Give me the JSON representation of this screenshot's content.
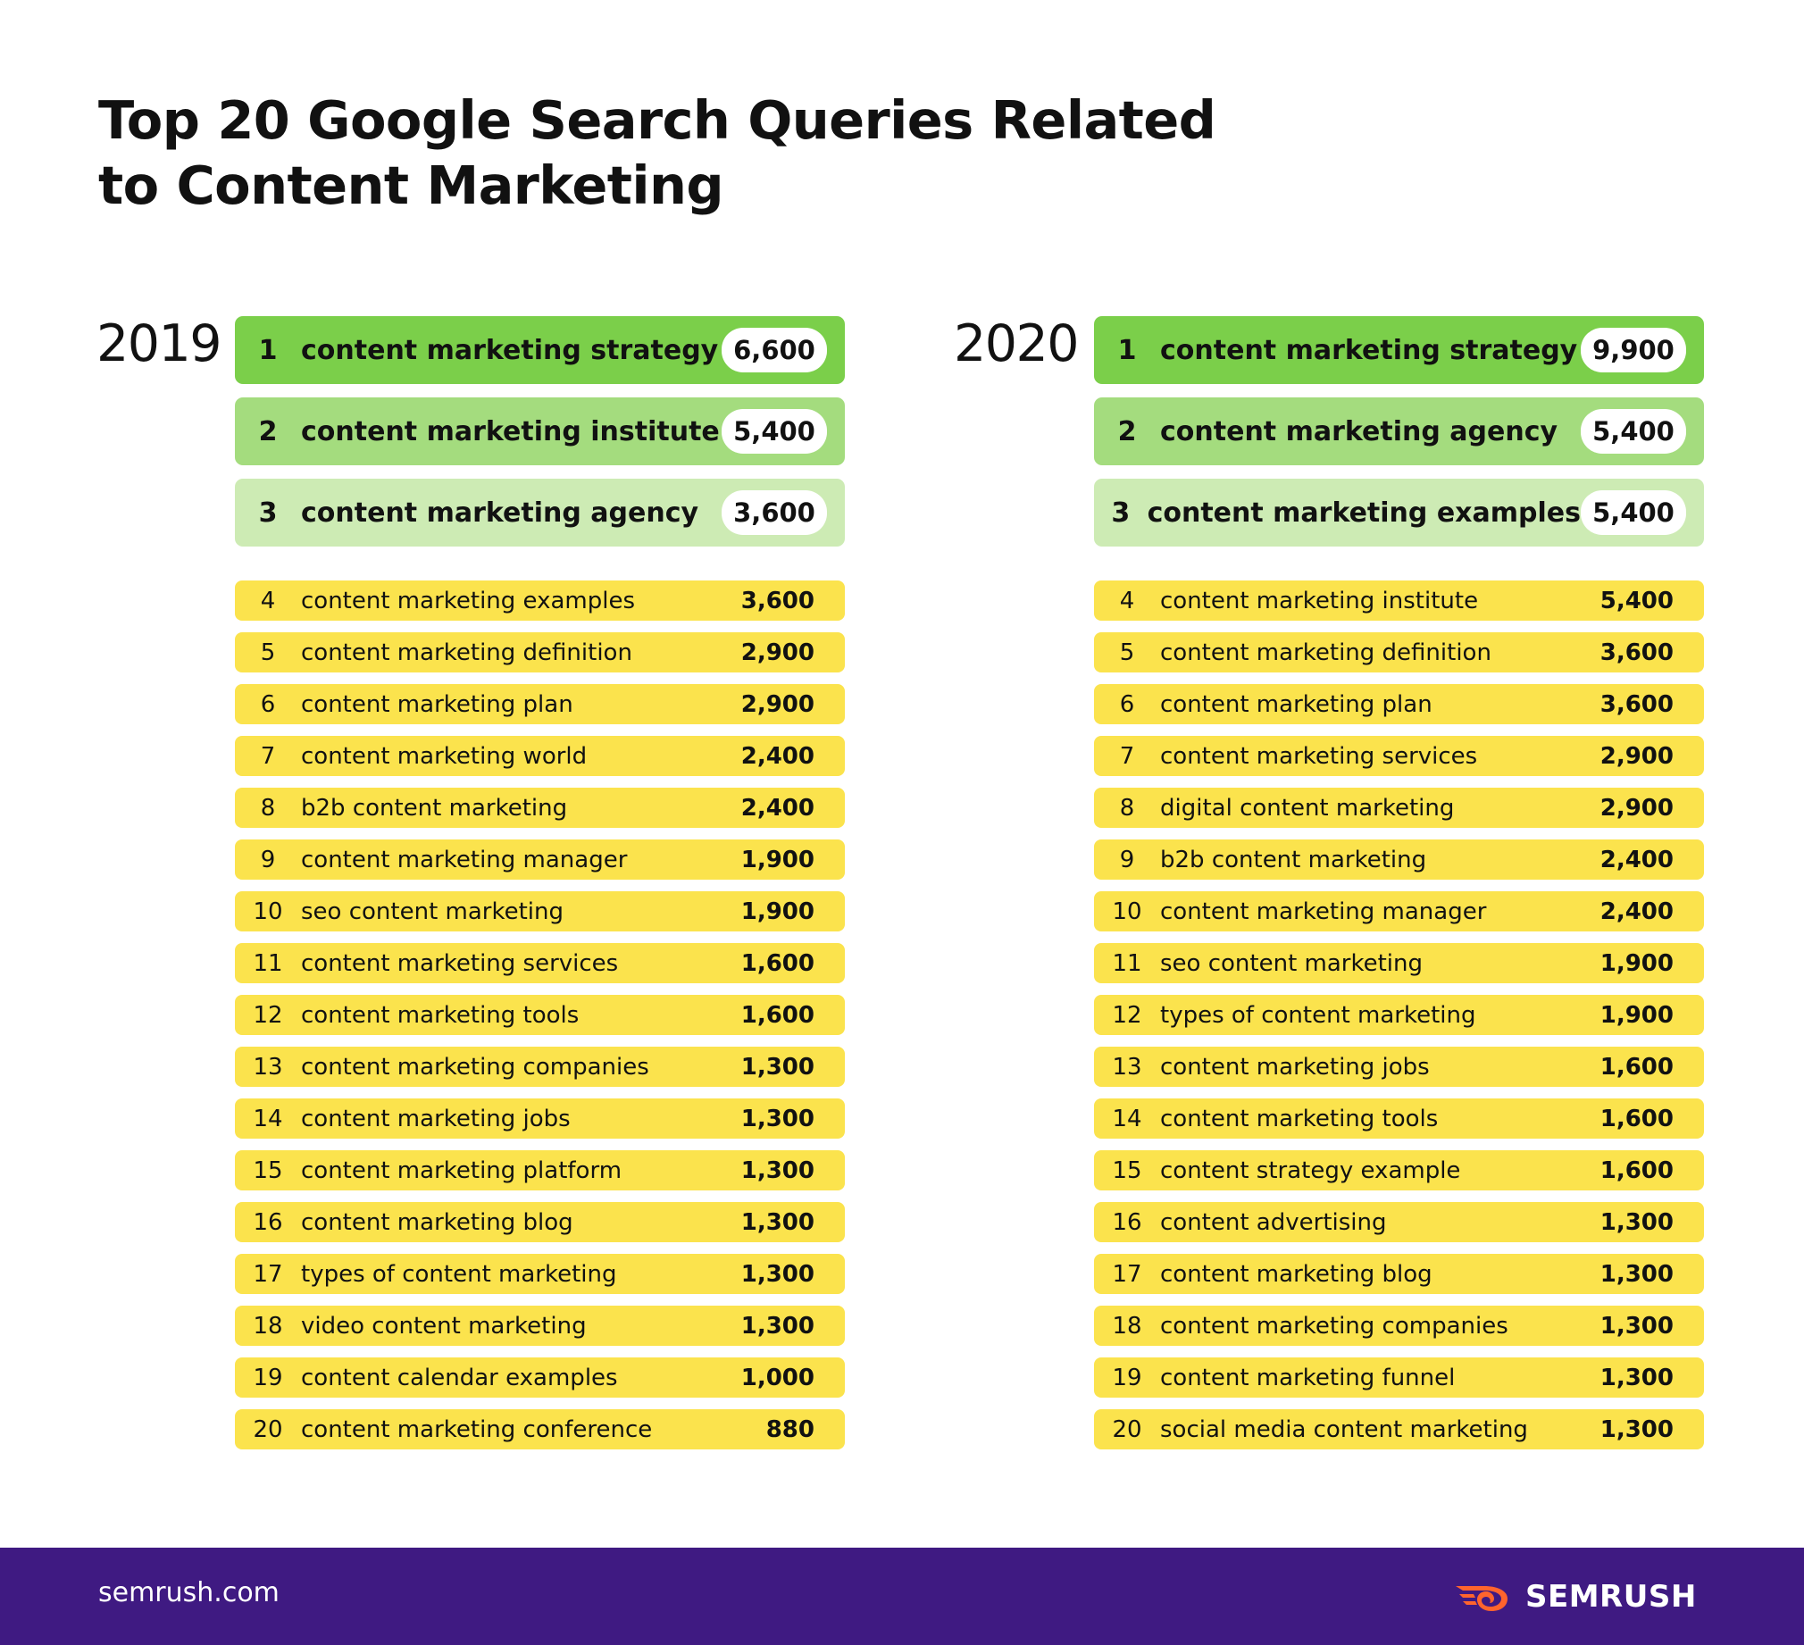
{
  "title": [
    "Top 20 Google Search Queries Related",
    "to Content Marketing"
  ],
  "colors": {
    "rank1": "#7bcf4a",
    "rank2": "#a4dc7e",
    "rank3": "#cdebb4",
    "rest": "#fbe34d",
    "footer": "#3f1a82",
    "brand_accent": "#ff642d"
  },
  "chart_data": {
    "type": "table",
    "tables": [
      {
        "year": "2019",
        "rows": [
          {
            "rank": "1",
            "query": "content marketing strategy",
            "volume": "6,600"
          },
          {
            "rank": "2",
            "query": "content marketing institute",
            "volume": "5,400"
          },
          {
            "rank": "3",
            "query": "content marketing agency",
            "volume": "3,600"
          },
          {
            "rank": "4",
            "query": "content marketing examples",
            "volume": "3,600"
          },
          {
            "rank": "5",
            "query": "content marketing definition",
            "volume": "2,900"
          },
          {
            "rank": "6",
            "query": "content marketing plan",
            "volume": "2,900"
          },
          {
            "rank": "7",
            "query": "content marketing world",
            "volume": "2,400"
          },
          {
            "rank": "8",
            "query": "b2b content marketing",
            "volume": "2,400"
          },
          {
            "rank": "9",
            "query": "content marketing manager",
            "volume": "1,900"
          },
          {
            "rank": "10",
            "query": "seo content marketing",
            "volume": "1,900"
          },
          {
            "rank": "11",
            "query": "content marketing services",
            "volume": "1,600"
          },
          {
            "rank": "12",
            "query": "content marketing tools",
            "volume": "1,600"
          },
          {
            "rank": "13",
            "query": "content marketing companies",
            "volume": "1,300"
          },
          {
            "rank": "14",
            "query": "content marketing jobs",
            "volume": "1,300"
          },
          {
            "rank": "15",
            "query": "content marketing platform",
            "volume": "1,300"
          },
          {
            "rank": "16",
            "query": "content marketing blog",
            "volume": "1,300"
          },
          {
            "rank": "17",
            "query": "types of content marketing",
            "volume": "1,300"
          },
          {
            "rank": "18",
            "query": "video content marketing",
            "volume": "1,300"
          },
          {
            "rank": "19",
            "query": "content calendar examples",
            "volume": "1,000"
          },
          {
            "rank": "20",
            "query": "content marketing conference",
            "volume": "880"
          }
        ]
      },
      {
        "year": "2020",
        "rows": [
          {
            "rank": "1",
            "query": "content marketing strategy",
            "volume": "9,900"
          },
          {
            "rank": "2",
            "query": "content marketing agency",
            "volume": "5,400"
          },
          {
            "rank": "3",
            "query": "content marketing examples",
            "volume": "5,400"
          },
          {
            "rank": "4",
            "query": "content marketing institute",
            "volume": "5,400"
          },
          {
            "rank": "5",
            "query": "content marketing definition",
            "volume": "3,600"
          },
          {
            "rank": "6",
            "query": "content marketing plan",
            "volume": "3,600"
          },
          {
            "rank": "7",
            "query": "content marketing services",
            "volume": "2,900"
          },
          {
            "rank": "8",
            "query": "digital content marketing",
            "volume": "2,900"
          },
          {
            "rank": "9",
            "query": "b2b content marketing",
            "volume": "2,400"
          },
          {
            "rank": "10",
            "query": "content marketing manager",
            "volume": "2,400"
          },
          {
            "rank": "11",
            "query": "seo content marketing",
            "volume": "1,900"
          },
          {
            "rank": "12",
            "query": "types of content marketing",
            "volume": "1,900"
          },
          {
            "rank": "13",
            "query": "content marketing jobs",
            "volume": "1,600"
          },
          {
            "rank": "14",
            "query": "content marketing tools",
            "volume": "1,600"
          },
          {
            "rank": "15",
            "query": "content strategy example",
            "volume": "1,600"
          },
          {
            "rank": "16",
            "query": "content advertising",
            "volume": "1,300"
          },
          {
            "rank": "17",
            "query": "content marketing blog",
            "volume": "1,300"
          },
          {
            "rank": "18",
            "query": "content marketing companies",
            "volume": "1,300"
          },
          {
            "rank": "19",
            "query": "content marketing funnel",
            "volume": "1,300"
          },
          {
            "rank": "20",
            "query": "social media content marketing",
            "volume": "1,300"
          }
        ]
      }
    ]
  },
  "footer": {
    "url": "semrush.com",
    "brand": "SEMRUSH",
    "brand_icon": "semrush-fire-icon"
  }
}
